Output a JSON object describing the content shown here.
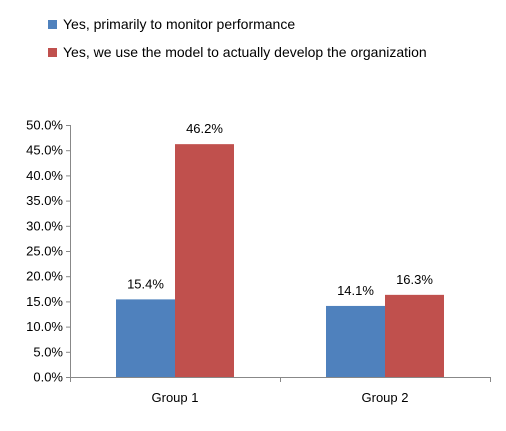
{
  "chart_data": {
    "type": "bar",
    "categories": [
      "Group 1",
      "Group 2"
    ],
    "series": [
      {
        "name": "Yes, primarily to monitor performance",
        "values": [
          15.4,
          14.1
        ],
        "color": "#4F81BD"
      },
      {
        "name": "Yes, we use the model to actually develop the organization",
        "values": [
          46.2,
          16.3
        ],
        "color": "#C0504D"
      }
    ],
    "data_labels": [
      [
        "15.4%",
        "14.1%"
      ],
      [
        "46.2%",
        "16.3%"
      ]
    ],
    "yticks": [
      "0.0%",
      "5.0%",
      "10.0%",
      "15.0%",
      "20.0%",
      "25.0%",
      "30.0%",
      "35.0%",
      "40.0%",
      "45.0%",
      "50.0%"
    ],
    "ylim": [
      0,
      50
    ],
    "grid": false,
    "legend_position": "top-left"
  }
}
